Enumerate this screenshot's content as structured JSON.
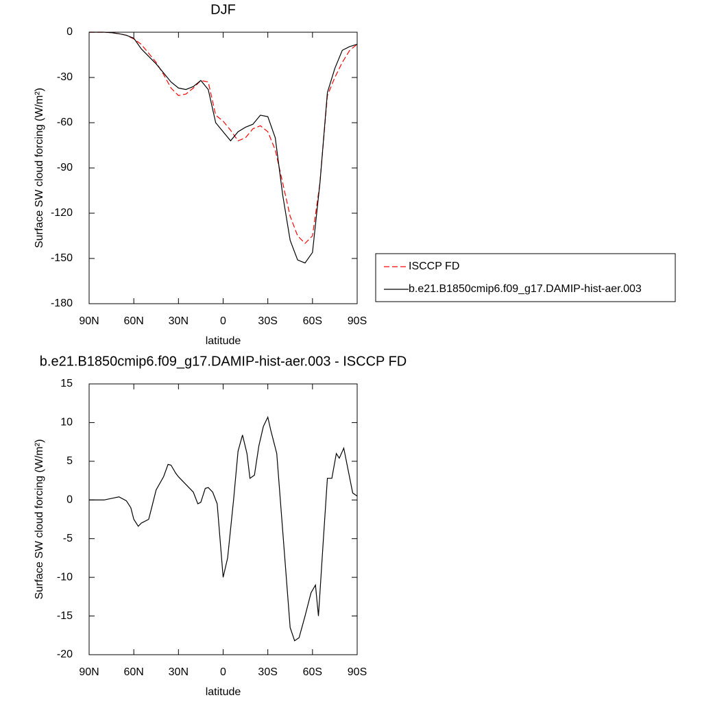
{
  "chart_data": [
    {
      "type": "line",
      "title": "DJF",
      "xlabel": "latitude",
      "ylabel": "Surface SW cloud forcing (W/m²)",
      "x": [
        90,
        85,
        80,
        75,
        70,
        65,
        60,
        55,
        50,
        45,
        40,
        35,
        30,
        25,
        20,
        15,
        10,
        5,
        0,
        -5,
        -10,
        -15,
        -20,
        -25,
        -30,
        -35,
        -40,
        -45,
        -50,
        -55,
        -60,
        -65,
        -70,
        -75,
        -80,
        -85,
        -90
      ],
      "series": [
        {
          "name": "ISCCP FD",
          "color": "#ff0000",
          "style": "dashed",
          "values": [
            0,
            0,
            0,
            -0.3,
            -1,
            -2,
            -4.5,
            -8,
            -14,
            -20,
            -28,
            -37,
            -42,
            -41,
            -37,
            -32,
            -33,
            -55,
            -59,
            -65,
            -72,
            -70,
            -64,
            -62,
            -66,
            -78,
            -100,
            -122,
            -135,
            -140,
            -135,
            -100,
            -42,
            -30,
            -20,
            -12,
            -8
          ]
        },
        {
          "name": "b.e21.B1850cmip6.f09_g17.DAMIP-hist-aer.003",
          "color": "#000000",
          "style": "solid",
          "values": [
            0,
            0,
            0,
            -0.3,
            -1,
            -2,
            -4,
            -11,
            -16,
            -21,
            -27,
            -33,
            -37,
            -38,
            -36,
            -32,
            -38,
            -60,
            -66,
            -72,
            -66,
            -63,
            -61,
            -55,
            -56,
            -70,
            -108,
            -138,
            -151,
            -153,
            -146,
            -100,
            -40,
            -24,
            -12,
            -9.5,
            -8
          ]
        }
      ],
      "xlim": [
        90,
        -90
      ],
      "xticks": [
        {
          "value": 90,
          "label": "90N"
        },
        {
          "value": 60,
          "label": "60N"
        },
        {
          "value": 30,
          "label": "30N"
        },
        0,
        {
          "value": -30,
          "label": "30S"
        },
        {
          "value": -60,
          "label": "60S"
        },
        {
          "value": -90,
          "label": "90S"
        }
      ],
      "ylim": [
        -180,
        0
      ],
      "yticks": [
        0,
        -30,
        -60,
        -90,
        -120,
        -150,
        -180
      ],
      "legend": "right"
    },
    {
      "type": "line",
      "title": "b.e21.B1850cmip6.f09_g17.DAMIP-hist-aer.003 - ISCCP FD",
      "xlabel": "latitude",
      "ylabel": "Surface SW cloud forcing (W/m²)",
      "x": [
        90,
        80,
        75,
        70,
        65,
        62,
        60,
        57,
        55,
        50,
        48,
        45,
        40,
        37,
        35,
        32,
        30,
        25,
        20,
        17,
        15,
        12,
        10,
        7,
        4,
        0,
        -3,
        -7,
        -10,
        -13,
        -16,
        -18,
        -21,
        -24,
        -27,
        -30,
        -32,
        -36,
        -40,
        -45,
        -48,
        -51,
        -55,
        -59,
        -62,
        -64,
        -67,
        -70,
        -73,
        -76,
        -78,
        -81,
        -84,
        -87,
        -90
      ],
      "values": [
        0,
        0,
        0.2,
        0.4,
        -0.1,
        -1,
        -2.5,
        -3.4,
        -3,
        -2.5,
        -1,
        1.3,
        3,
        4.6,
        4.5,
        3.5,
        3,
        2,
        1,
        -0.5,
        -0.3,
        1.5,
        1.6,
        1,
        -0.5,
        -10,
        -7.5,
        0,
        6.3,
        8.4,
        6,
        2.8,
        3.2,
        7,
        9.5,
        10.7,
        9,
        6,
        -4,
        -16.5,
        -18.2,
        -17.8,
        -15,
        -12,
        -11,
        -15,
        -6,
        2.8,
        2.8,
        6,
        5.4,
        6.7,
        3.8,
        0.9,
        0.5
      ],
      "color": "#000000",
      "xlim": [
        90,
        -90
      ],
      "xticks": [
        {
          "value": 90,
          "label": "90N"
        },
        {
          "value": 60,
          "label": "60N"
        },
        {
          "value": 30,
          "label": "30N"
        },
        0,
        {
          "value": -30,
          "label": "30S"
        },
        {
          "value": -60,
          "label": "60S"
        },
        {
          "value": -90,
          "label": "90S"
        }
      ],
      "ylim": [
        -20,
        15
      ],
      "yticks": [
        15,
        10,
        5,
        0,
        -5,
        -10,
        -15,
        -20
      ]
    }
  ]
}
